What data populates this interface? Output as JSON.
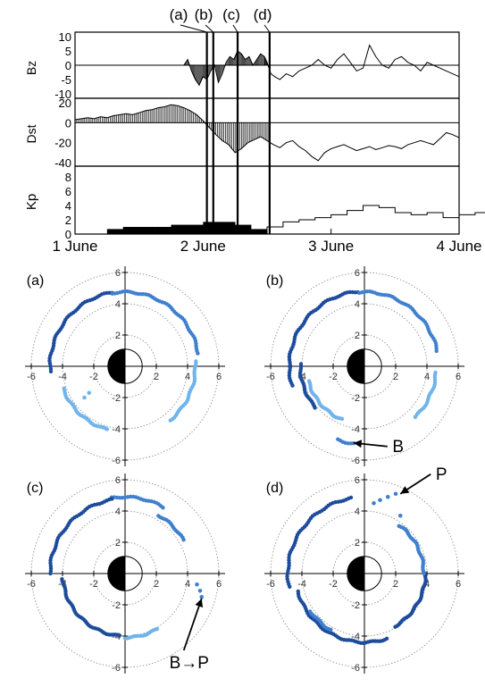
{
  "chart_data": [
    {
      "type": "line",
      "panel": "time-series",
      "ylabels": [
        "Bz",
        "Dst",
        "Kp"
      ],
      "xlim": [
        1,
        4
      ],
      "x_ticks": [
        1,
        2,
        3,
        4
      ],
      "x_tick_labels": [
        "1 June",
        "2 June",
        "3 June",
        "4 June"
      ],
      "markers": [
        {
          "label": "(a)",
          "x": 2.03
        },
        {
          "label": "(b)",
          "x": 2.08
        },
        {
          "label": "(c)",
          "x": 2.27
        },
        {
          "label": "(d)",
          "x": 2.52
        }
      ],
      "bz": {
        "ylim": [
          -10,
          10
        ],
        "ticks": [
          10,
          5,
          0,
          -5,
          -10
        ],
        "tick_labels": [
          "10",
          "5",
          "0",
          "-5",
          "-10"
        ],
        "x": [
          1.85,
          1.88,
          1.91,
          1.94,
          1.97,
          2.0,
          2.03,
          2.06,
          2.09,
          2.12,
          2.15,
          2.18,
          2.21,
          2.24,
          2.27,
          2.3,
          2.33,
          2.36,
          2.39,
          2.42,
          2.45,
          2.48,
          2.5,
          2.53,
          2.56,
          2.6,
          2.65,
          2.7,
          2.75,
          2.8,
          2.85,
          2.9,
          2.95,
          3.0,
          3.05,
          3.1,
          3.15,
          3.2,
          3.25,
          3.3,
          3.35,
          3.4,
          3.45,
          3.5,
          3.55,
          3.6,
          3.65,
          3.7,
          3.75,
          3.8,
          3.85,
          3.9,
          3.95,
          4.0
        ],
        "y": [
          0,
          2,
          -2,
          -5,
          -7,
          -4,
          -5,
          -2,
          0,
          -6,
          -3,
          1,
          3,
          2,
          5,
          4,
          2,
          3,
          0,
          2,
          4,
          3,
          1,
          -3,
          -4,
          -5,
          -3,
          -4,
          -2,
          -1,
          0,
          2,
          0,
          -1,
          2,
          4,
          1,
          -2,
          -1,
          7,
          3,
          0,
          -1,
          2,
          3,
          1,
          0,
          -2,
          1,
          0,
          -1,
          -2,
          -3,
          -4
        ]
      },
      "dst": {
        "ylim": [
          -40,
          20
        ],
        "ticks": [
          20,
          0,
          -20,
          -40
        ],
        "tick_labels": [
          "20",
          "0",
          "-20",
          "-40"
        ],
        "x": [
          1.0,
          1.05,
          1.1,
          1.15,
          1.2,
          1.25,
          1.3,
          1.35,
          1.4,
          1.45,
          1.5,
          1.55,
          1.6,
          1.65,
          1.7,
          1.75,
          1.8,
          1.85,
          1.9,
          1.95,
          2.0,
          2.05,
          2.1,
          2.15,
          2.2,
          2.25,
          2.3,
          2.35,
          2.4,
          2.45,
          2.5,
          2.55,
          2.6,
          2.65,
          2.7,
          2.75,
          2.8,
          2.85,
          2.9,
          2.95,
          3.0,
          3.05,
          3.1,
          3.15,
          3.2,
          3.25,
          3.3,
          3.35,
          3.4,
          3.45,
          3.5,
          3.55,
          3.6,
          3.65,
          3.7,
          3.75,
          3.8,
          3.85,
          3.9,
          3.95,
          4.0
        ],
        "y": [
          3,
          4,
          5,
          4,
          6,
          5,
          7,
          8,
          9,
          8,
          10,
          12,
          13,
          15,
          16,
          18,
          17,
          15,
          12,
          8,
          2,
          -5,
          -12,
          -18,
          -22,
          -30,
          -26,
          -20,
          -17,
          -14,
          -18,
          -22,
          -25,
          -20,
          -18,
          -24,
          -28,
          -34,
          -38,
          -30,
          -26,
          -24,
          -22,
          -25,
          -28,
          -26,
          -24,
          -27,
          -25,
          -23,
          -24,
          -26,
          -22,
          -20,
          -18,
          -20,
          -22,
          -16,
          -10,
          -12,
          -15
        ]
      },
      "kp": {
        "ylim": [
          0,
          9
        ],
        "ticks": [
          0,
          2,
          4,
          6,
          8
        ],
        "tick_labels": [
          "0",
          "2",
          "4",
          "6",
          "8"
        ],
        "bin_hours": 3,
        "start": 1.0,
        "values": [
          0,
          0,
          0.7,
          1,
          1,
          1,
          1.3,
          1.3,
          1.7,
          1.7,
          1.3,
          0.7,
          1,
          1.7,
          2,
          2.3,
          2.7,
          3.3,
          4,
          3.7,
          3,
          2.7,
          3,
          2.3,
          2.7,
          3,
          3.3,
          3.3,
          3.3,
          3.7,
          3.7,
          3.3,
          3.3,
          3.7,
          3.3,
          3,
          3.3,
          2.7,
          1.7,
          2,
          1,
          1,
          1.3,
          2.7,
          1,
          2.3,
          2,
          1.3
        ]
      }
    },
    {
      "type": "scatter",
      "panel": "polar-maps",
      "xlim": [
        -6,
        6
      ],
      "ylim": [
        -6,
        6
      ],
      "axis_tick_labels": [
        "-6",
        "-4",
        "-2",
        "0",
        "2",
        "4",
        "6"
      ],
      "y_tick_labels": [
        "6",
        "4",
        "2",
        "0",
        "-2",
        "-4",
        "-6"
      ],
      "colors": {
        "dark": "#1e4c9c",
        "mid": "#3f80cf",
        "light": "#6fb4ec"
      },
      "maps": [
        {
          "label": "(a)",
          "arcs": [
            {
              "r": 4.8,
              "from": 100,
              "to": 185,
              "shade": "dark"
            },
            {
              "r": 4.75,
              "from": 10,
              "to": 100,
              "shade": "mid"
            },
            {
              "r": 4.5,
              "from": -50,
              "to": 5,
              "shade": "light"
            },
            {
              "r": 4.2,
              "from": 200,
              "to": 255,
              "shade": "light"
            }
          ],
          "points": [
            [
              -2.3,
              -1.7,
              "light"
            ],
            [
              -2.6,
              -2.0,
              "light"
            ]
          ],
          "annotation": ""
        },
        {
          "label": "(b)",
          "arcs": [
            {
              "r": 4.8,
              "from": 95,
              "to": 195,
              "shade": "dark"
            },
            {
              "r": 4.75,
              "from": 12,
              "to": 95,
              "shade": "mid"
            },
            {
              "r": 4.6,
              "from": -45,
              "to": -5,
              "shade": "light"
            },
            {
              "r": 3.7,
              "from": 195,
              "to": 248,
              "shade": "light"
            },
            {
              "r": 4.1,
              "from": 178,
              "to": 220,
              "shade": "dark"
            },
            {
              "r": 5.0,
              "from": 250,
              "to": 262,
              "shade": "mid"
            }
          ],
          "points": [],
          "annotation": "B",
          "arrow_to": [
            -0.7,
            -4.9
          ]
        },
        {
          "label": "(c)",
          "arcs": [
            {
              "r": 4.9,
              "from": 60,
              "to": 100,
              "shade": "mid"
            },
            {
              "r": 4.8,
              "from": 100,
              "to": 180,
              "shade": "dark"
            },
            {
              "r": 4.3,
              "from": 30,
              "to": 60,
              "shade": "mid"
            },
            {
              "r": 4.0,
              "from": 185,
              "to": 265,
              "shade": "dark"
            },
            {
              "r": 4.1,
              "from": 270,
              "to": 300,
              "shade": "light"
            }
          ],
          "points": [
            [
              4.6,
              -0.7,
              "mid"
            ],
            [
              4.8,
              -1.1,
              "mid"
            ],
            [
              4.9,
              -1.5,
              "mid"
            ]
          ],
          "annotation": "B→P",
          "arrow_to": [
            4.9,
            -1.6
          ]
        },
        {
          "label": "(d)",
          "arcs": [
            {
              "r": 4.9,
              "from": 100,
              "to": 190,
              "shade": "dark"
            },
            {
              "r": 4.4,
              "from": 195,
              "to": 290,
              "shade": "dark"
            },
            {
              "r": 3.9,
              "from": 300,
              "to": 360,
              "shade": "dark"
            },
            {
              "r": 3.8,
              "from": 0,
              "to": 55,
              "shade": "mid"
            },
            {
              "r": 4.2,
              "from": 215,
              "to": 240,
              "shade": "mid"
            }
          ],
          "points": [
            [
              0.6,
              4.5,
              "mid"
            ],
            [
              1.0,
              4.7,
              "mid"
            ],
            [
              1.5,
              4.9,
              "mid"
            ],
            [
              2.0,
              5.1,
              "mid"
            ],
            [
              2.3,
              3.7,
              "mid"
            ]
          ],
          "annotation": "P",
          "arrow_to": [
            2.3,
            5.1
          ]
        }
      ]
    }
  ]
}
